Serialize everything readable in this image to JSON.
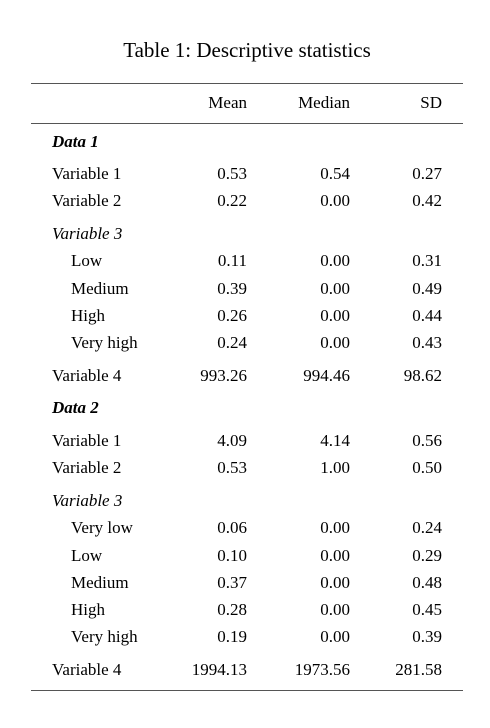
{
  "table": {
    "caption": "Table 1: Descriptive statistics",
    "columns": [
      "",
      "Mean",
      "Median",
      "SD"
    ],
    "sections": [
      {
        "name": "Data 1",
        "rows": [
          {
            "label": "Variable 1",
            "mean": "0.53",
            "median": "0.54",
            "sd": "0.27"
          },
          {
            "label": "Variable 2",
            "mean": "0.22",
            "median": "0.00",
            "sd": "0.42"
          }
        ],
        "group": {
          "name": "Variable 3",
          "rows": [
            {
              "label": "Low",
              "mean": "0.11",
              "median": "0.00",
              "sd": "0.31"
            },
            {
              "label": "Medium",
              "mean": "0.39",
              "median": "0.00",
              "sd": "0.49"
            },
            {
              "label": "High",
              "mean": "0.26",
              "median": "0.00",
              "sd": "0.44"
            },
            {
              "label": "Very high",
              "mean": "0.24",
              "median": "0.00",
              "sd": "0.43"
            }
          ]
        },
        "tail": {
          "label": "Variable 4",
          "mean": "993.26",
          "median": "994.46",
          "sd": "98.62"
        }
      },
      {
        "name": "Data 2",
        "rows": [
          {
            "label": "Variable 1",
            "mean": "4.09",
            "median": "4.14",
            "sd": "0.56"
          },
          {
            "label": "Variable 2",
            "mean": "0.53",
            "median": "1.00",
            "sd": "0.50"
          }
        ],
        "group": {
          "name": "Variable 3",
          "rows": [
            {
              "label": "Very low",
              "mean": "0.06",
              "median": "0.00",
              "sd": "0.24"
            },
            {
              "label": "Low",
              "mean": "0.10",
              "median": "0.00",
              "sd": "0.29"
            },
            {
              "label": "Medium",
              "mean": "0.37",
              "median": "0.00",
              "sd": "0.48"
            },
            {
              "label": "High",
              "mean": "0.28",
              "median": "0.00",
              "sd": "0.45"
            },
            {
              "label": "Very high",
              "mean": "0.19",
              "median": "0.00",
              "sd": "0.39"
            }
          ]
        },
        "tail": {
          "label": "Variable 4",
          "mean": "1994.13",
          "median": "1973.56",
          "sd": "281.58"
        }
      }
    ]
  }
}
